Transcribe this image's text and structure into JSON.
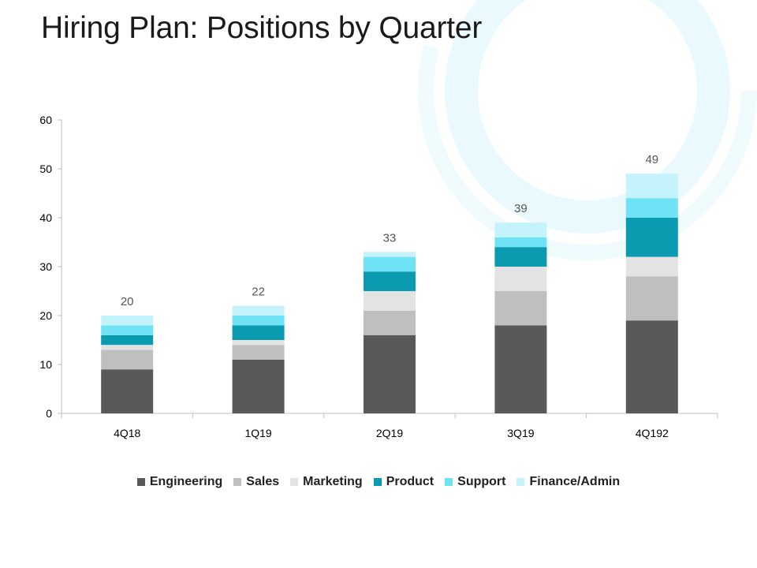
{
  "title": "Hiring Plan: Positions by Quarter",
  "chart_data": {
    "type": "bar",
    "stacked": true,
    "categories": [
      "4Q18",
      "1Q19",
      "2Q19",
      "3Q19",
      "4Q192"
    ],
    "series": [
      {
        "name": "Engineering",
        "color": "#595959",
        "values": [
          9,
          11,
          16,
          18,
          19
        ]
      },
      {
        "name": "Sales",
        "color": "#bfbfbf",
        "values": [
          4,
          3,
          5,
          7,
          9
        ]
      },
      {
        "name": "Marketing",
        "color": "#e3e3e3",
        "values": [
          1,
          1,
          4,
          5,
          4
        ]
      },
      {
        "name": "Product",
        "color": "#0a9bb0",
        "values": [
          2,
          3,
          4,
          4,
          8
        ]
      },
      {
        "name": "Support",
        "color": "#6fe3f5",
        "values": [
          2,
          2,
          3,
          2,
          4
        ]
      },
      {
        "name": "Finance/Admin",
        "color": "#c5f3fb",
        "values": [
          2,
          2,
          1,
          3,
          5
        ]
      }
    ],
    "totals": [
      "20",
      "22",
      "33",
      "39",
      "49"
    ],
    "yticks": [
      "0",
      "10",
      "20",
      "30",
      "40",
      "50",
      "60"
    ],
    "ylim": [
      0,
      60
    ],
    "xlabel": "",
    "ylabel": "",
    "legend_position": "bottom"
  }
}
